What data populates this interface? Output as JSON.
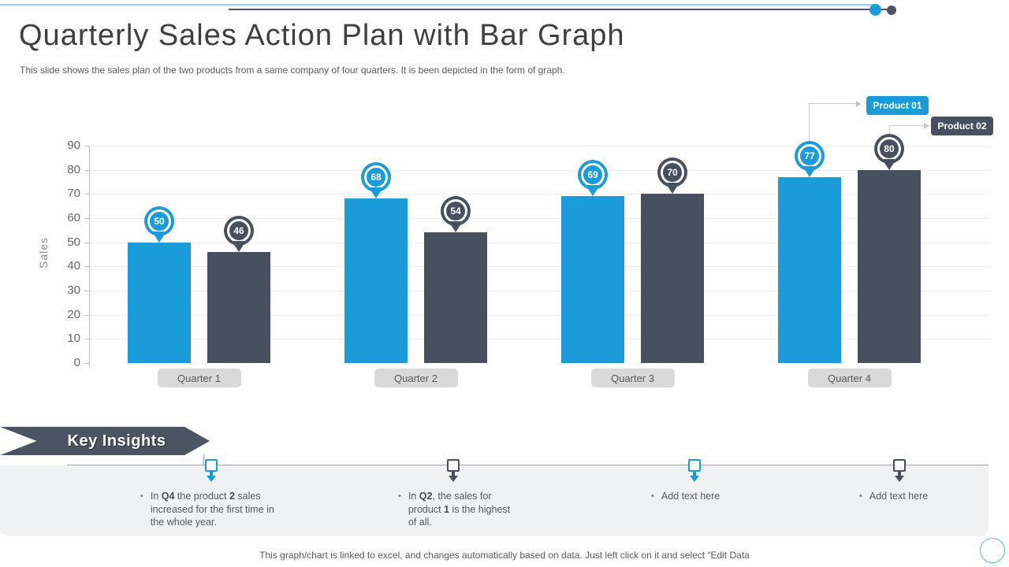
{
  "title": "Quarterly Sales Action Plan with Bar Graph",
  "subtitle": "This slide shows the sales plan of the two products from a same company of four quarters. It is been depicted in the form of graph.",
  "colors": {
    "product1": "#1b9bd8",
    "product2": "#47505f",
    "panel_bg": "#eff1f2",
    "quarter_label_bg": "#d9d9d9",
    "accent_cyan": "#8fd4e6",
    "accent_dark": "#4b5563"
  },
  "chart_data": {
    "type": "bar",
    "categories": [
      "Quarter 1",
      "Quarter 2",
      "Quarter 3",
      "Quarter 4"
    ],
    "series": [
      {
        "name": "Product 01",
        "color": "#1b9bd8",
        "values": [
          50,
          68,
          69,
          77
        ]
      },
      {
        "name": "Product 02",
        "color": "#47505f",
        "values": [
          46,
          54,
          70,
          80
        ]
      }
    ],
    "title": "",
    "xlabel": "",
    "ylabel": "Sales",
    "ylim": [
      0,
      90
    ],
    "ytick_step": 10,
    "grid": true,
    "legend_position": "top-right",
    "data_label_style": "map-pin"
  },
  "legend": {
    "items": [
      {
        "label": "Product 01",
        "color": "#1b9bd8"
      },
      {
        "label": "Product 02",
        "color": "#47505f"
      }
    ]
  },
  "insights": {
    "heading": "Key Insights",
    "items": [
      {
        "marker_color": "#1b9bd8",
        "segments": [
          {
            "t": "In ",
            "b": false
          },
          {
            "t": "Q4",
            "b": true
          },
          {
            "t": " the product ",
            "b": false
          },
          {
            "t": "2",
            "b": true
          },
          {
            "t": " sales increased for the first time in the whole year.",
            "b": false
          }
        ]
      },
      {
        "marker_color": "#47505f",
        "segments": [
          {
            "t": "In ",
            "b": false
          },
          {
            "t": "Q2",
            "b": true
          },
          {
            "t": ", the sales for product ",
            "b": false
          },
          {
            "t": "1",
            "b": true
          },
          {
            "t": " is the highest of all.",
            "b": false
          }
        ]
      },
      {
        "marker_color": "#1b9bd8",
        "segments": [
          {
            "t": "Add text here",
            "b": false
          }
        ]
      },
      {
        "marker_color": "#47505f",
        "segments": [
          {
            "t": "Add text here",
            "b": false
          }
        ]
      }
    ]
  },
  "footer": "This graph/chart is linked to excel,  and changes automatically based on data. Just left click on it and select “Edit Data"
}
